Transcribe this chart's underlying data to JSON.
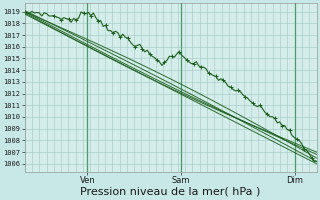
{
  "background_color": "#c8e8e8",
  "plot_bg_color": "#d4ecea",
  "grid_color_major": "#a0c8c0",
  "grid_color_minor": "#b8dcd8",
  "line_color": "#1a5e1a",
  "marker_color": "#1a5e1a",
  "xlabel": "Pression niveau de la mer( hPa )",
  "xlabel_fontsize": 8,
  "ylabel_ticks": [
    1006,
    1007,
    1008,
    1009,
    1010,
    1011,
    1012,
    1013,
    1014,
    1015,
    1016,
    1017,
    1018,
    1019
  ],
  "ylim": [
    1005.3,
    1019.7
  ],
  "vline_color": "#4a9a6a",
  "n_points": 120,
  "t_ven": 0.215,
  "t_sam": 0.535,
  "t_dim": 0.925
}
